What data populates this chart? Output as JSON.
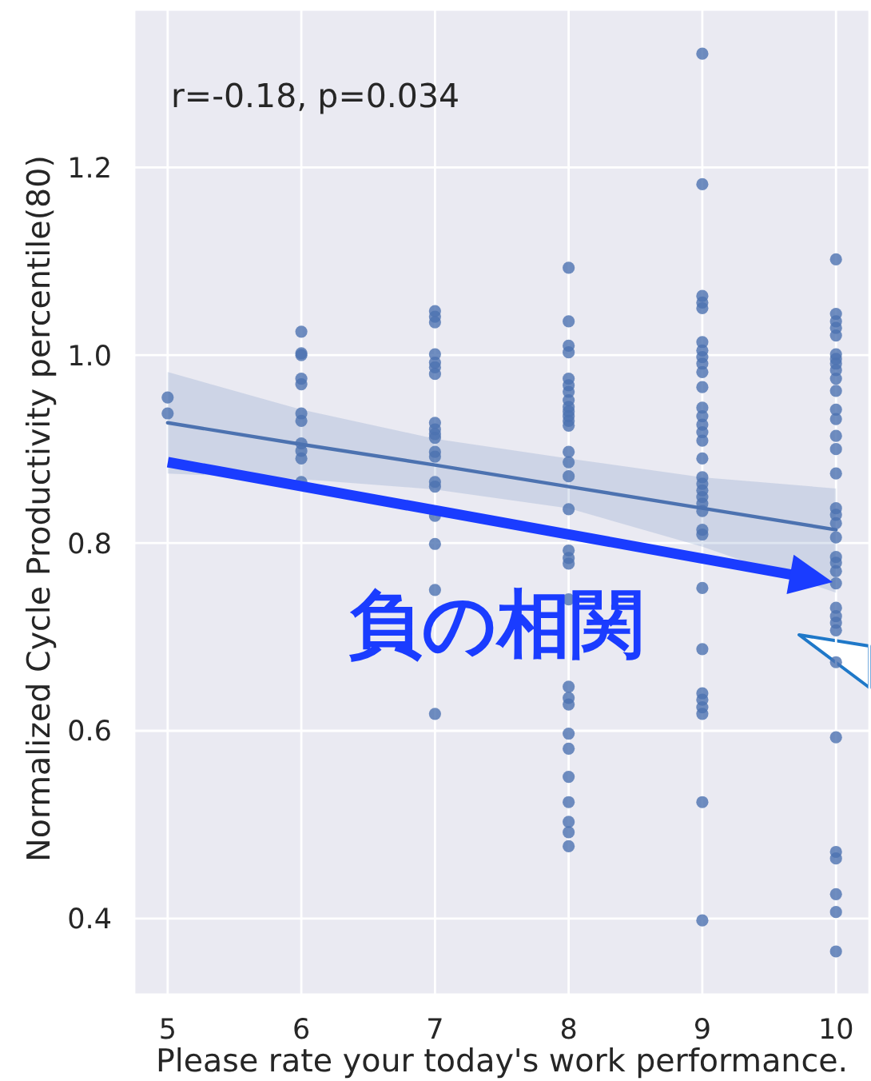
{
  "chart_data": {
    "type": "scatter",
    "xlabel": "Please rate your today's work performance.",
    "ylabel": "Normalized Cycle Productivity percentile(80)",
    "annotations": [
      "r=-0.18, p=0.034",
      "負の相関"
    ],
    "xlim": [
      4.75,
      10.25
    ],
    "ylim": [
      0.319,
      1.368
    ],
    "xticks": [
      5,
      6,
      7,
      8,
      9,
      10
    ],
    "yticks": [
      0.4,
      0.6,
      0.8,
      {
        "value": 1,
        "label": "1.0"
      },
      1.2
    ],
    "grid": true,
    "series": [
      {
        "color": "#4c72b0",
        "marker": "circle",
        "x": [
          5,
          5,
          6,
          6,
          6,
          6,
          6,
          6,
          6,
          6,
          6,
          6,
          6,
          7,
          7,
          7,
          7,
          7,
          7,
          7,
          7,
          7,
          7,
          7,
          7,
          7,
          7,
          7,
          7,
          7,
          7,
          7,
          8,
          8,
          8,
          8,
          8,
          8,
          8,
          8,
          8,
          8,
          8,
          8,
          8,
          8,
          8,
          8,
          8,
          8,
          8,
          8,
          8,
          8,
          8,
          8,
          8,
          8,
          8,
          8,
          8,
          8,
          8,
          9,
          9,
          9,
          9,
          9,
          9,
          9,
          9,
          9,
          9,
          9,
          9,
          9,
          9,
          9,
          9,
          9,
          9,
          9,
          9,
          9,
          9,
          9,
          9,
          9,
          9,
          9,
          9,
          9,
          9,
          9,
          9,
          9,
          10,
          10,
          10,
          10,
          10,
          10,
          10,
          10,
          10,
          10,
          10,
          10,
          10,
          10,
          10,
          10,
          10,
          10,
          10,
          10,
          10,
          10,
          10,
          10,
          10,
          10,
          10,
          10,
          10,
          10,
          10,
          10,
          10,
          10,
          10
        ],
        "values": [
          0.955,
          0.938,
          1.025,
          1.002,
          1.0,
          0.975,
          0.969,
          0.938,
          0.93,
          0.906,
          0.898,
          0.89,
          0.865,
          1.047,
          1.041,
          1.035,
          1.001,
          0.992,
          0.987,
          0.98,
          0.928,
          0.921,
          0.916,
          0.912,
          0.897,
          0.892,
          0.865,
          0.86,
          0.829,
          0.799,
          0.75,
          0.618,
          1.093,
          1.036,
          1.01,
          1.003,
          0.975,
          0.968,
          0.961,
          0.952,
          0.945,
          0.94,
          0.935,
          0.93,
          0.925,
          0.897,
          0.886,
          0.871,
          0.836,
          0.792,
          0.784,
          0.778,
          0.74,
          0.647,
          0.635,
          0.628,
          0.597,
          0.581,
          0.551,
          0.524,
          0.503,
          0.492,
          0.477,
          1.321,
          1.182,
          1.063,
          1.056,
          1.05,
          1.014,
          1.005,
          0.998,
          0.991,
          0.982,
          0.966,
          0.944,
          0.935,
          0.926,
          0.918,
          0.909,
          0.89,
          0.87,
          0.863,
          0.856,
          0.849,
          0.842,
          0.834,
          0.814,
          0.809,
          0.752,
          0.687,
          0.64,
          0.633,
          0.625,
          0.618,
          0.524,
          0.398,
          1.102,
          1.044,
          1.036,
          1.029,
          1.021,
          1.001,
          0.996,
          0.991,
          0.984,
          0.975,
          0.962,
          0.942,
          0.932,
          0.914,
          0.9,
          0.874,
          0.837,
          0.83,
          0.821,
          0.806,
          0.785,
          0.779,
          0.77,
          0.757,
          0.731,
          0.722,
          0.715,
          0.707,
          0.673,
          0.593,
          0.471,
          0.464,
          0.426,
          0.407,
          0.365
        ]
      },
      {
        "type": "line",
        "color": "#4c72b0",
        "line_style": "solid",
        "x": [
          5,
          6,
          7,
          8,
          9,
          10
        ],
        "values": [
          0.928,
          0.905,
          0.883,
          0.86,
          0.837,
          0.814
        ],
        "lower": [
          0.874,
          0.868,
          0.857,
          0.837,
          0.796,
          0.747
        ],
        "upper": [
          0.982,
          0.942,
          0.911,
          0.89,
          0.87,
          0.858
        ]
      }
    ]
  }
}
